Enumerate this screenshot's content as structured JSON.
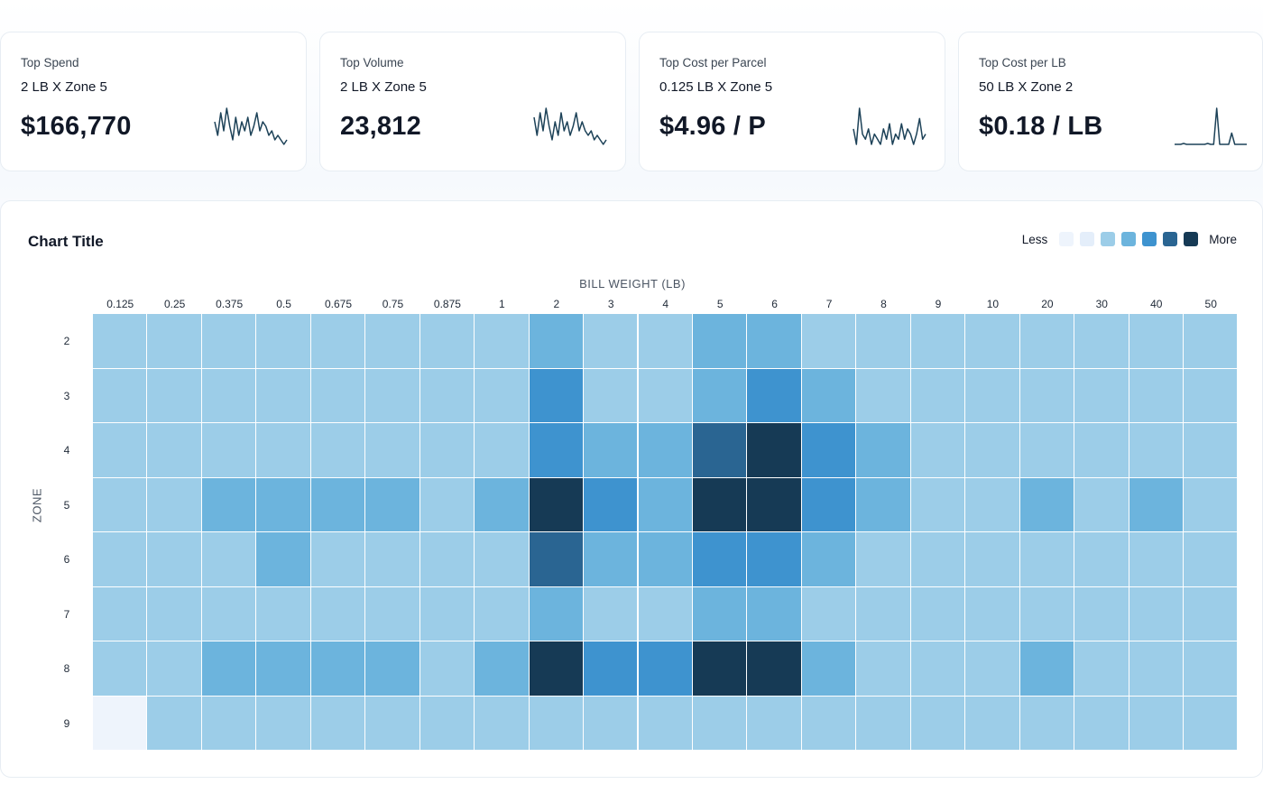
{
  "kpis": [
    {
      "title": "Top Spend",
      "subtitle": "2 LB X Zone 5",
      "value": "$166,770",
      "spark": [
        6,
        3,
        8,
        4,
        9,
        5,
        2,
        7,
        3,
        6,
        4,
        7,
        3,
        5,
        8,
        4,
        6,
        5,
        3,
        4,
        2,
        3,
        2,
        1,
        2
      ]
    },
    {
      "title": "Top Volume",
      "subtitle": "2 LB X Zone 5",
      "value": "23,812",
      "spark": [
        7,
        3,
        8,
        4,
        9,
        5,
        2,
        6,
        3,
        8,
        4,
        6,
        3,
        5,
        8,
        4,
        6,
        4,
        3,
        4,
        2,
        3,
        2,
        1,
        2
      ]
    },
    {
      "title": "Top Cost per Parcel",
      "subtitle": "0.125 LB X Zone 5",
      "value": "$4.96 / P",
      "spark": [
        5,
        2,
        9,
        4,
        3,
        5,
        2,
        4,
        3,
        2,
        5,
        3,
        6,
        2,
        4,
        3,
        6,
        3,
        5,
        4,
        2,
        4,
        7,
        3,
        4
      ]
    },
    {
      "title": "Top Cost per LB",
      "subtitle": "50 LB X Zone 2",
      "value": "$0.18 / LB",
      "spark": [
        1,
        1,
        1,
        1.2,
        1,
        1,
        1,
        1,
        1,
        1,
        1,
        1.2,
        1,
        1,
        9,
        1,
        1,
        1,
        1,
        3.5,
        1,
        1,
        1,
        1,
        1
      ]
    }
  ],
  "chart_data": {
    "type": "heatmap",
    "title": "Chart Title",
    "xlabel": "BILL WEIGHT (LB)",
    "ylabel": "ZONE",
    "x": [
      "0.125",
      "0.25",
      "0.375",
      "0.5",
      "0.675",
      "0.75",
      "0.875",
      "1",
      "2",
      "3",
      "4",
      "5",
      "6",
      "7",
      "8",
      "9",
      "10",
      "20",
      "30",
      "40",
      "50"
    ],
    "y": [
      "2",
      "3",
      "4",
      "5",
      "6",
      "7",
      "8",
      "9"
    ],
    "values": [
      [
        2,
        2,
        2,
        2,
        2,
        2,
        2,
        2,
        3,
        2,
        2,
        3,
        3,
        2,
        2,
        2,
        2,
        2,
        2,
        2,
        2
      ],
      [
        2,
        2,
        2,
        2,
        2,
        2,
        2,
        2,
        4,
        2,
        2,
        3,
        4,
        3,
        2,
        2,
        2,
        2,
        2,
        2,
        2
      ],
      [
        2,
        2,
        2,
        2,
        2,
        2,
        2,
        2,
        4,
        3,
        3,
        5,
        6,
        4,
        3,
        2,
        2,
        2,
        2,
        2,
        2
      ],
      [
        2,
        2,
        3,
        3,
        3,
        3,
        2,
        3,
        6,
        4,
        3,
        6,
        6,
        4,
        3,
        2,
        2,
        3,
        2,
        3,
        2
      ],
      [
        2,
        2,
        2,
        3,
        2,
        2,
        2,
        2,
        5,
        3,
        3,
        4,
        4,
        3,
        2,
        2,
        2,
        2,
        2,
        2,
        2
      ],
      [
        2,
        2,
        2,
        2,
        2,
        2,
        2,
        2,
        3,
        2,
        2,
        3,
        3,
        2,
        2,
        2,
        2,
        2,
        2,
        2,
        2
      ],
      [
        2,
        2,
        3,
        3,
        3,
        3,
        2,
        3,
        6,
        4,
        4,
        6,
        6,
        3,
        2,
        2,
        2,
        3,
        2,
        2,
        2
      ],
      [
        0,
        2,
        2,
        2,
        2,
        2,
        2,
        2,
        2,
        2,
        2,
        2,
        2,
        2,
        2,
        2,
        2,
        2,
        2,
        2,
        2
      ]
    ],
    "legend": {
      "low_label": "Less",
      "high_label": "More"
    },
    "colorscale": [
      "#eef4fc",
      "#e4eefa",
      "#9ccde8",
      "#6cb4dd",
      "#3e93cf",
      "#2a6592",
      "#163a55"
    ]
  }
}
